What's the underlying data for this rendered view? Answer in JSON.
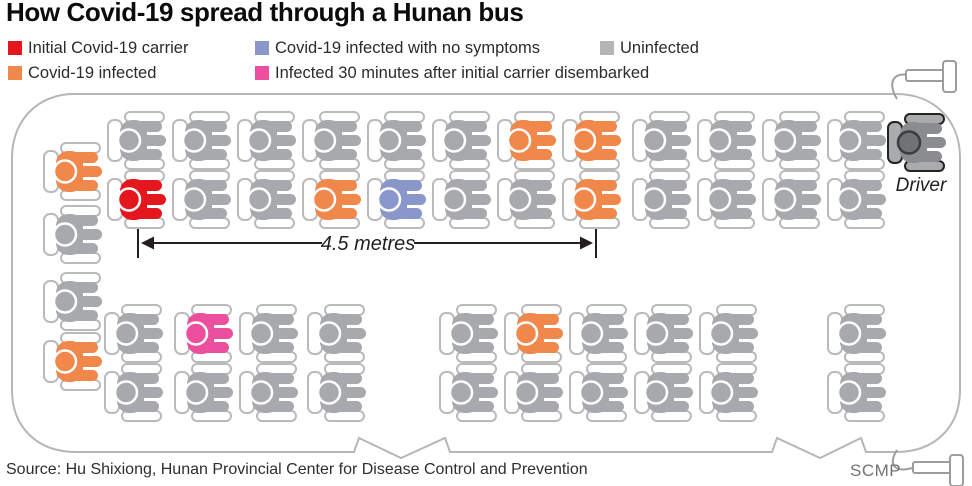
{
  "title": "How Covid-19 spread through a Hunan bus",
  "legend": {
    "items": [
      {
        "id": "carrier",
        "label": "Initial Covid-19 carrier",
        "color": "#e5171e"
      },
      {
        "id": "infected",
        "label": "Covid-19 infected",
        "color": "#f0874b"
      },
      {
        "id": "asymptomatic",
        "label": "Covid-19 infected with no symptoms",
        "color": "#8997cb"
      },
      {
        "id": "late_infected",
        "label": "Infected 30 minutes after initial carrier disembarked",
        "color": "#ec4f9d"
      },
      {
        "id": "uninfected",
        "label": "Uninfected",
        "color": "#b3b5b7"
      }
    ]
  },
  "bus": {
    "driver_label": "Driver",
    "distance_label": "4.5 metres",
    "status_colors": {
      "carrier": "#e5171e",
      "infected": "#f0874b",
      "asymptomatic": "#8997cb",
      "late_infected": "#ec4f9d",
      "uninfected": "#a7a9ac",
      "driver": "#8a8c8f"
    },
    "seat_rows": {
      "back_row": [
        "infected",
        "uninfected",
        "uninfected",
        "infected"
      ],
      "row_1": [
        "uninfected",
        "uninfected",
        "uninfected",
        "uninfected",
        "uninfected",
        "uninfected",
        "infected",
        "infected",
        "uninfected",
        "uninfected",
        "uninfected",
        "uninfected"
      ],
      "row_2": [
        "carrier",
        "uninfected",
        "uninfected",
        "infected",
        "asymptomatic",
        "uninfected",
        "uninfected",
        "infected",
        "uninfected",
        "uninfected",
        "uninfected",
        "uninfected"
      ],
      "row_3": [
        "uninfected",
        "late_infected",
        "uninfected",
        "uninfected",
        "uninfected",
        "infected",
        "uninfected",
        "uninfected",
        "uninfected",
        "uninfected"
      ],
      "row_4": [
        "uninfected",
        "uninfected",
        "uninfected",
        "uninfected",
        "uninfected",
        "uninfected",
        "uninfected",
        "uninfected",
        "uninfected",
        "uninfected"
      ]
    },
    "driver_status": "driver"
  },
  "footer": {
    "source": "Source: Hu Shixiong, Hunan Provincial Center for Disease Control and Prevention",
    "credit": "SCMP"
  }
}
